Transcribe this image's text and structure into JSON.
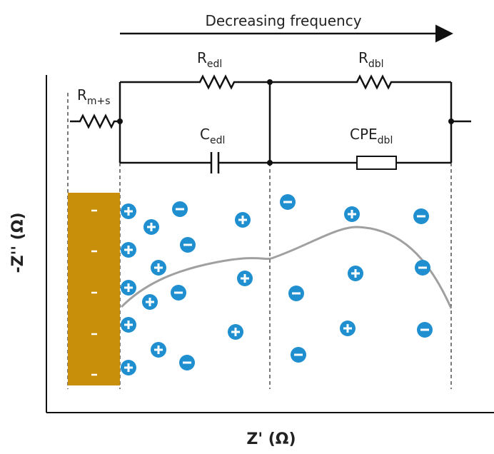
{
  "header": {
    "title": "Decreasing frequency"
  },
  "components": [
    {
      "main": "R",
      "sub": "m+s"
    },
    {
      "main": "R",
      "sub": "edl"
    },
    {
      "main": "C",
      "sub": "edl"
    },
    {
      "main": "R",
      "sub": "dbl"
    },
    {
      "main": "CPE",
      "sub": "dbl"
    }
  ],
  "axes": {
    "y_label": "-Z'' (Ω)",
    "x_label": "Z' (Ω)"
  }
}
